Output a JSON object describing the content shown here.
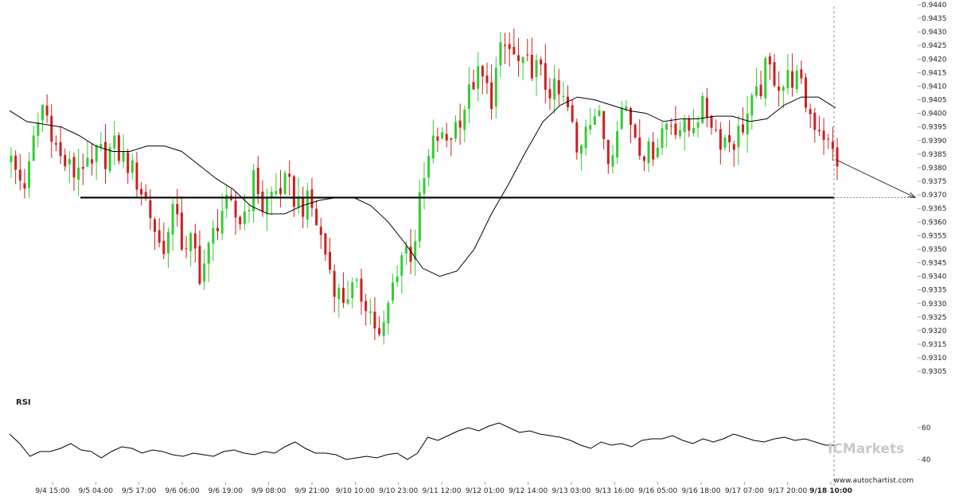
{
  "chart_data": [
    {
      "type": "candlestick",
      "title": "",
      "xlabel": "",
      "ylabel": "",
      "ylim": [
        0.9303,
        0.944
      ],
      "y_ticks": [
        "0.9440",
        "0.9435",
        "0.9430",
        "0.9425",
        "0.9420",
        "0.9415",
        "0.9410",
        "0.9405",
        "0.9400",
        "0.9395",
        "0.9390",
        "0.9385",
        "0.9380",
        "0.9375",
        "0.9370",
        "0.9365",
        "0.9360",
        "0.9355",
        "0.9350",
        "0.9345",
        "0.9340",
        "0.9335",
        "0.9330",
        "0.9325",
        "0.9320",
        "0.9315",
        "0.9310",
        "0.9305"
      ],
      "x_ticks": [
        "9/4 15:00",
        "9/5 04:00",
        "9/5 17:00",
        "9/6 06:00",
        "9/6 19:00",
        "9/9 08:00",
        "9/9 21:00",
        "9/10 10:00",
        "9/10 23:00",
        "9/11 12:00",
        "9/12 01:00",
        "9/12 14:00",
        "9/13 03:00",
        "9/13 16:00",
        "9/16 05:00",
        "9/16 18:00",
        "9/17 07:00",
        "9/17 20:00",
        "9/18 10:00"
      ],
      "current_x_label": "9/18 10:00",
      "close_path": [
        0.9382,
        0.9376,
        0.9374,
        0.9392,
        0.9403,
        0.9396,
        0.9384,
        0.9381,
        0.9378,
        0.9383,
        0.9377,
        0.9386,
        0.9384,
        0.9388,
        0.9384,
        0.9381,
        0.9375,
        0.9369,
        0.936,
        0.935,
        0.9355,
        0.9368,
        0.9345,
        0.9354,
        0.9341,
        0.9348,
        0.9359,
        0.9366,
        0.9364,
        0.936,
        0.9366,
        0.9377,
        0.9365,
        0.937,
        0.9372,
        0.9374,
        0.9369,
        0.9366,
        0.9367,
        0.9358,
        0.9348,
        0.9338,
        0.9331,
        0.9335,
        0.9334,
        0.9332,
        0.9324,
        0.9315,
        0.933,
        0.9343,
        0.9351,
        0.9348,
        0.9368,
        0.9382,
        0.9392,
        0.9389,
        0.9393,
        0.9399,
        0.9405,
        0.9414,
        0.9412,
        0.9405,
        0.9421,
        0.9425,
        0.942,
        0.9416,
        0.9418,
        0.9416,
        0.941,
        0.9408,
        0.9405,
        0.94,
        0.9383,
        0.9398,
        0.9401,
        0.9396,
        0.9382,
        0.9398,
        0.9404,
        0.9395,
        0.9388,
        0.9385,
        0.9389,
        0.9396,
        0.9397,
        0.9395,
        0.9393,
        0.9399,
        0.9402,
        0.9398,
        0.9391,
        0.9391,
        0.939,
        0.9396,
        0.9402,
        0.9407,
        0.9417,
        0.9414,
        0.941,
        0.9414,
        0.9412,
        0.9404,
        0.9397,
        0.9395,
        0.9387,
        0.9383
      ],
      "series": [
        {
          "name": "",
          "kind": "moving-average",
          "values": [
            0.9401,
            0.9397,
            0.9396,
            0.9395,
            0.9392,
            0.9388,
            0.9386,
            0.9386,
            0.9388,
            0.9388,
            0.9386,
            0.9381,
            0.9376,
            0.9372,
            0.9366,
            0.9363,
            0.9363,
            0.9366,
            0.9368,
            0.9369,
            0.9369,
            0.9366,
            0.936,
            0.9352,
            0.9343,
            0.934,
            0.9342,
            0.935,
            0.9363,
            0.9374,
            0.9386,
            0.9397,
            0.9403,
            0.9406,
            0.9405,
            0.9403,
            0.9401,
            0.94,
            0.9397,
            0.9398,
            0.9398,
            0.9399,
            0.9399,
            0.9397,
            0.9398,
            0.9403,
            0.9406,
            0.9406,
            0.9402
          ]
        }
      ],
      "annotations": {
        "horizontal_level": 0.9369,
        "projection_end": 0.9369
      },
      "grid": false,
      "y_axis_side": "right"
    },
    {
      "type": "line",
      "title": "RSI",
      "ylim": [
        34,
        70
      ],
      "y_ticks": [
        "60",
        "40"
      ],
      "series": [
        {
          "name": "RSI",
          "values": [
            56,
            50,
            42,
            45,
            45,
            47,
            50,
            46,
            45,
            41,
            45,
            48,
            47,
            44,
            46,
            45,
            43,
            42,
            44,
            43,
            42,
            45,
            46,
            44,
            43,
            45,
            44,
            48,
            51,
            47,
            44,
            44,
            43,
            40,
            41,
            42,
            41,
            43,
            44,
            40,
            44,
            54,
            52,
            55,
            58,
            60,
            58,
            61,
            63,
            60,
            57,
            58,
            56,
            55,
            54,
            52,
            49,
            47,
            51,
            49,
            50,
            48,
            52,
            53,
            53,
            55,
            52,
            50,
            53,
            51,
            53,
            56,
            54,
            52,
            51,
            53,
            54,
            52,
            53,
            51,
            49,
            49
          ]
        }
      ],
      "grid": false
    }
  ],
  "watermark": {
    "brand": "ICMarkets",
    "credit": "www.autochartist.com"
  },
  "colors": {
    "bull": "#33cc33",
    "bear": "#cc1f1f",
    "line": "#000000",
    "level": "#000000",
    "text": "#222222"
  }
}
